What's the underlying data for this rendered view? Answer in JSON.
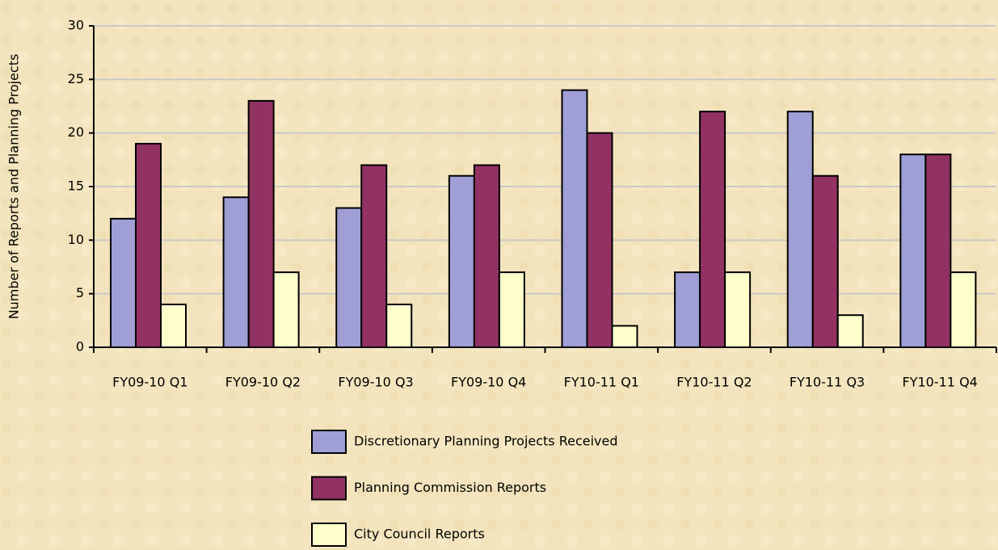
{
  "chart_data": {
    "type": "bar",
    "y_label": "Number of Reports and Planning Projects",
    "categories": [
      "FY09-10 Q1",
      "FY09-10 Q2",
      "FY09-10 Q3",
      "FY09-10 Q4",
      "FY10-11 Q1",
      "FY10-11 Q2",
      "FY10-11 Q3",
      "FY10-11 Q4"
    ],
    "series": [
      {
        "name": "Discretionary Planning Projects Received",
        "color": "#9f9fd6",
        "values": [
          12,
          14,
          13,
          16,
          24,
          7,
          22,
          18
        ]
      },
      {
        "name": "Planning Commission Reports",
        "color": "#923263",
        "values": [
          19,
          23,
          17,
          17,
          20,
          22,
          16,
          18
        ]
      },
      {
        "name": "City Council Reports",
        "color": "#ffffcc",
        "values": [
          4,
          7,
          4,
          7,
          2,
          7,
          3,
          7
        ]
      }
    ],
    "ylim": [
      0,
      30
    ],
    "yticks": [
      0,
      5,
      10,
      15,
      20,
      25,
      30
    ],
    "grid": true
  }
}
